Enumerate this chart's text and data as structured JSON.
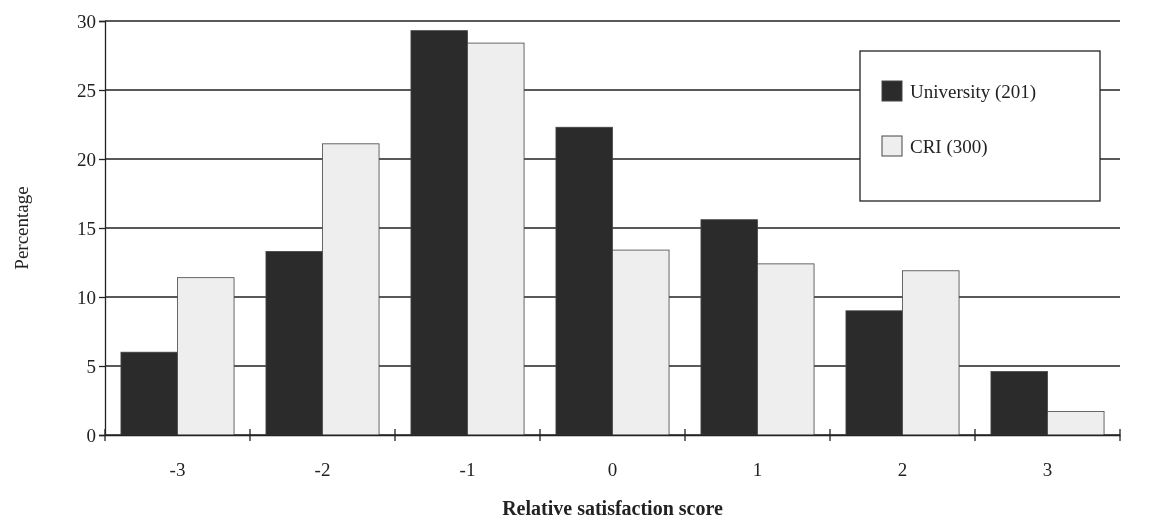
{
  "chart_data": {
    "type": "bar",
    "xlabel": "Relative satisfaction score",
    "ylabel": "Percentage",
    "categories": [
      "-3",
      "-2",
      "-1",
      "0",
      "1",
      "2",
      "3"
    ],
    "series": [
      {
        "name": "University (201)",
        "color": "#2b2b2b",
        "values": [
          6.0,
          13.3,
          29.3,
          22.3,
          15.6,
          9.0,
          4.6
        ]
      },
      {
        "name": "CRI (300)",
        "color": "#eeeeee",
        "values": [
          11.4,
          21.1,
          28.4,
          13.4,
          12.4,
          11.9,
          1.7
        ]
      }
    ],
    "ylim": [
      0,
      30
    ],
    "yticks": [
      0,
      5,
      10,
      15,
      20,
      25,
      30
    ],
    "grid": "y",
    "legend": "top right"
  }
}
